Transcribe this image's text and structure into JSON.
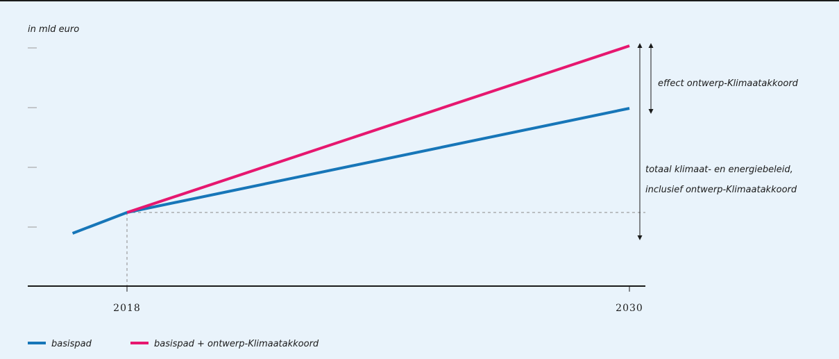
{
  "colors": {
    "background": "#e9f3fb",
    "basispad": "#1776b8",
    "klimaatakkoord": "#e6176f",
    "axis": "#1a1a1a",
    "guide": "#8a8a8a"
  },
  "chart_data": {
    "type": "line",
    "ylabel": "in mld euro",
    "xlabel": "",
    "x_ticks": [
      "2018",
      "2030"
    ],
    "y_tick_labels_shown": false,
    "xlim": [
      2016.5,
      2031.5
    ],
    "ylim": [
      0,
      10
    ],
    "grid": false,
    "legend_position": "bottom-left",
    "series": [
      {
        "name": "basispad",
        "color": "#1776b8",
        "points": [
          [
            2016.7,
            1.0
          ],
          [
            2018,
            2.0
          ],
          [
            2030,
            7.0
          ]
        ]
      },
      {
        "name": "basispad + ontwerp-Klimaatakkoord",
        "color": "#e6176f",
        "points": [
          [
            2018,
            2.0
          ],
          [
            2030,
            10.0
          ]
        ]
      }
    ],
    "reference_level": {
      "y": 2.0,
      "from_x": 2018,
      "to_x": 2030
    },
    "annotations": {
      "effect": "effect ontwerp-Klimaatakkoord",
      "total_line1": "totaal klimaat- en energiebeleid,",
      "total_line2": "inclusief ontwerp-Klimaatakkoord"
    }
  }
}
